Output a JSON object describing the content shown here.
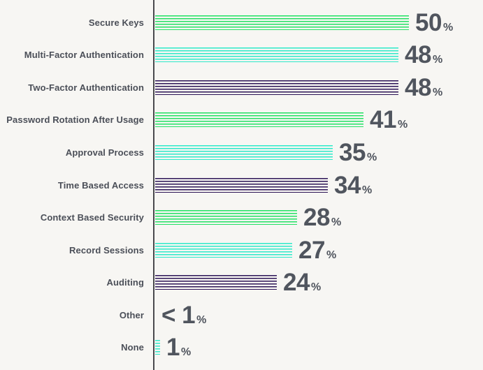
{
  "chart_data": {
    "type": "bar",
    "orientation": "horizontal",
    "title": "",
    "xlabel": "",
    "ylabel": "",
    "grid": false,
    "unit": "%",
    "xlim": [
      0,
      65
    ],
    "bar_style": "horizontal-striped-lines",
    "color_cycle": [
      "#22e163",
      "#2de9c9",
      "#2b1356"
    ],
    "categories": [
      "Secure Keys",
      "Multi-Factor Authentication",
      "Two-Factor Authentication",
      "Password Rotation After Usage",
      "Approval Process",
      "Time Based Access",
      "Context Based Security",
      "Record Sessions",
      "Auditing",
      "Other",
      "None"
    ],
    "values": [
      50,
      48,
      48,
      41,
      35,
      34,
      28,
      27,
      24,
      0,
      1
    ],
    "value_labels": [
      "50",
      "48",
      "48",
      "41",
      "35",
      "34",
      "28",
      "27",
      "24",
      "< 1",
      "1"
    ]
  },
  "colors": {
    "background": "#f7f6f3",
    "axis_line": "#4a4a4e",
    "category_text": "#4b4f58",
    "value_text": "#50555e"
  }
}
